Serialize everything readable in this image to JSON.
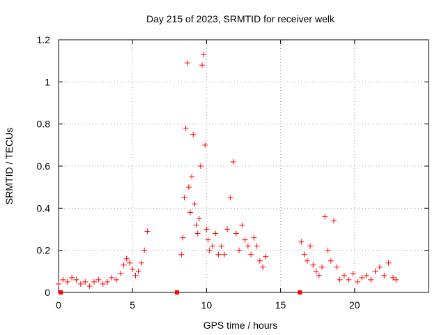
{
  "chart_data": {
    "type": "scatter",
    "title": "Day 215 of 2023, SRMTID for receiver welk",
    "xlabel": "GPS time / hours",
    "ylabel": "SRMTID / TECUs",
    "xlim": [
      0,
      25
    ],
    "ylim": [
      0,
      1.2
    ],
    "xticks": [
      0,
      5,
      10,
      15,
      20
    ],
    "yticks": [
      0,
      0.2,
      0.4,
      0.6,
      0.8,
      1,
      1.2
    ],
    "ytick_labels": [
      "0",
      "0.2",
      "0.4",
      "0.6",
      "0.8",
      "1",
      "1.2"
    ],
    "grid": true,
    "series": [
      {
        "name": "SRMTID",
        "marker": "plus",
        "color": "#ff0000",
        "x": [
          0.0,
          0.3,
          0.6,
          0.9,
          1.2,
          1.5,
          1.8,
          2.1,
          2.4,
          2.7,
          3.0,
          3.3,
          3.6,
          3.9,
          4.2,
          4.4,
          4.6,
          4.8,
          5.0,
          5.2,
          5.4,
          5.6,
          5.8,
          6.0,
          8.3,
          8.4,
          8.5,
          8.6,
          8.7,
          8.8,
          8.9,
          9.0,
          9.1,
          9.2,
          9.3,
          9.4,
          9.5,
          9.6,
          9.7,
          9.8,
          9.9,
          10.0,
          10.1,
          10.2,
          10.4,
          10.6,
          10.8,
          11.0,
          11.2,
          11.4,
          11.6,
          11.8,
          12.0,
          12.2,
          12.4,
          12.6,
          12.8,
          13.0,
          13.2,
          13.4,
          13.6,
          13.8,
          14.0,
          16.4,
          16.6,
          16.8,
          17.0,
          17.2,
          17.4,
          17.6,
          17.8,
          18.0,
          18.2,
          18.4,
          18.6,
          18.8,
          19.0,
          19.3,
          19.6,
          19.9,
          20.2,
          20.5,
          20.8,
          21.1,
          21.4,
          21.7,
          22.0,
          22.3,
          22.6,
          22.8
        ],
        "y": [
          0.04,
          0.06,
          0.05,
          0.07,
          0.06,
          0.04,
          0.05,
          0.03,
          0.05,
          0.06,
          0.04,
          0.05,
          0.07,
          0.06,
          0.09,
          0.13,
          0.16,
          0.14,
          0.11,
          0.08,
          0.1,
          0.14,
          0.2,
          0.29,
          0.18,
          0.26,
          0.45,
          0.78,
          1.09,
          0.5,
          0.38,
          0.55,
          0.75,
          0.42,
          0.32,
          0.28,
          0.35,
          0.6,
          1.08,
          1.13,
          0.7,
          0.3,
          0.25,
          0.2,
          0.22,
          0.28,
          0.18,
          0.22,
          0.18,
          0.3,
          0.45,
          0.62,
          0.28,
          0.2,
          0.32,
          0.25,
          0.22,
          0.18,
          0.26,
          0.22,
          0.15,
          0.12,
          0.17,
          0.24,
          0.18,
          0.15,
          0.22,
          0.13,
          0.1,
          0.08,
          0.12,
          0.36,
          0.2,
          0.15,
          0.34,
          0.12,
          0.06,
          0.08,
          0.06,
          0.09,
          0.05,
          0.07,
          0.08,
          0.06,
          0.1,
          0.12,
          0.08,
          0.14,
          0.07,
          0.06
        ]
      }
    ],
    "gap_markers": {
      "shape": "square",
      "x": [
        0.15,
        8.0,
        16.3
      ],
      "y": [
        0,
        0,
        0
      ]
    }
  }
}
